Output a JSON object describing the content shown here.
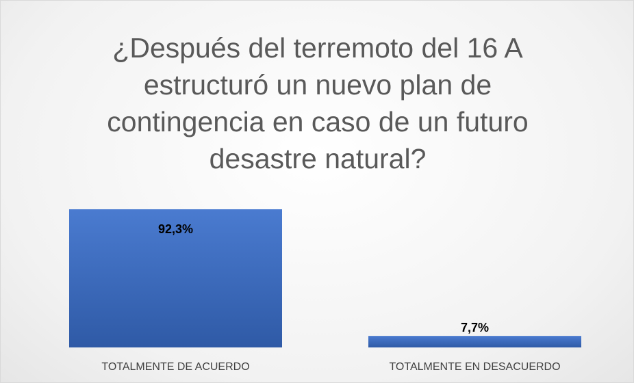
{
  "chart_data": {
    "type": "bar",
    "title": "¿Después del terremoto del 16 A estructuró un nuevo plan de contingencia en caso de un futuro desastre natural?",
    "categories": [
      "TOTALMENTE DE ACUERDO",
      "TOTALMENTE EN DESACUERDO"
    ],
    "values": [
      92.3,
      7.7
    ],
    "value_labels": [
      "92,3%",
      "7,7%"
    ],
    "color": "#4472c4"
  }
}
